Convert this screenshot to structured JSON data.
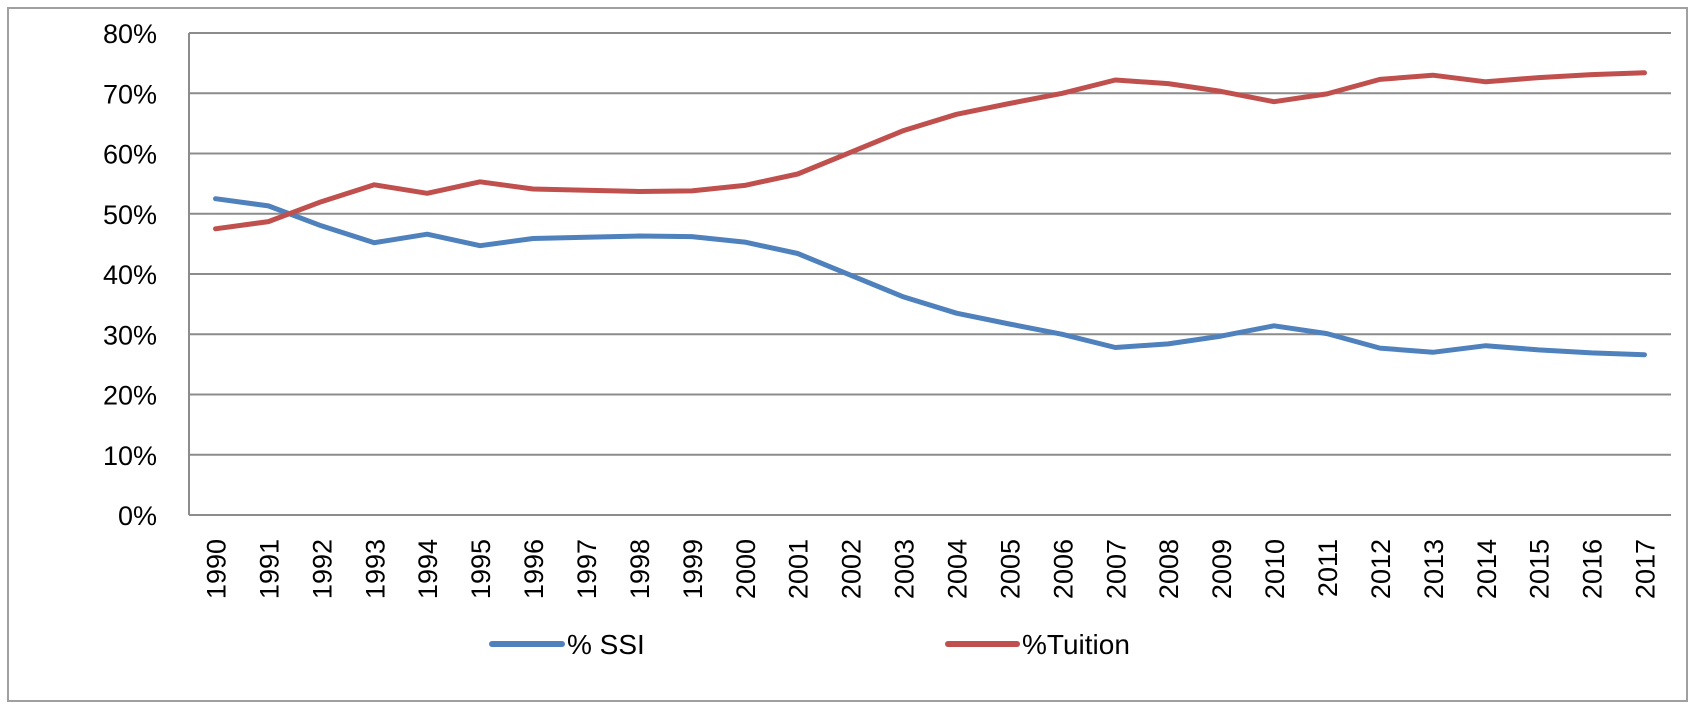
{
  "chart_data": {
    "type": "line",
    "title": "",
    "xlabel": "",
    "ylabel": "",
    "ylim": [
      0,
      0.8
    ],
    "yticks": [
      "0%",
      "10%",
      "20%",
      "30%",
      "40%",
      "50%",
      "60%",
      "70%",
      "80%"
    ],
    "grid": true,
    "legend_position": "bottom",
    "categories": [
      "1990",
      "1991",
      "1992",
      "1993",
      "1994",
      "1995",
      "1996",
      "1997",
      "1998",
      "1999",
      "2000",
      "2001",
      "2002",
      "2003",
      "2004",
      "2005",
      "2006",
      "2007",
      "2008",
      "2009",
      "2010",
      "2011",
      "2012",
      "2013",
      "2014",
      "2015",
      "2016",
      "2017"
    ],
    "series": [
      {
        "name": "% SSI",
        "color": "#4f81bd",
        "values": [
          0.525,
          0.513,
          0.48,
          0.452,
          0.466,
          0.447,
          0.459,
          0.461,
          0.463,
          0.462,
          0.453,
          0.434,
          0.398,
          0.362,
          0.335,
          0.317,
          0.3,
          0.278,
          0.284,
          0.297,
          0.314,
          0.301,
          0.277,
          0.27,
          0.281,
          0.274,
          0.269,
          0.266
        ]
      },
      {
        "name": "%Tuition",
        "color": "#c0504d",
        "values": [
          0.475,
          0.487,
          0.52,
          0.548,
          0.534,
          0.553,
          0.541,
          0.539,
          0.537,
          0.538,
          0.547,
          0.566,
          0.602,
          0.638,
          0.665,
          0.683,
          0.7,
          0.722,
          0.716,
          0.703,
          0.686,
          0.699,
          0.723,
          0.73,
          0.719,
          0.726,
          0.731,
          0.734
        ]
      }
    ]
  }
}
